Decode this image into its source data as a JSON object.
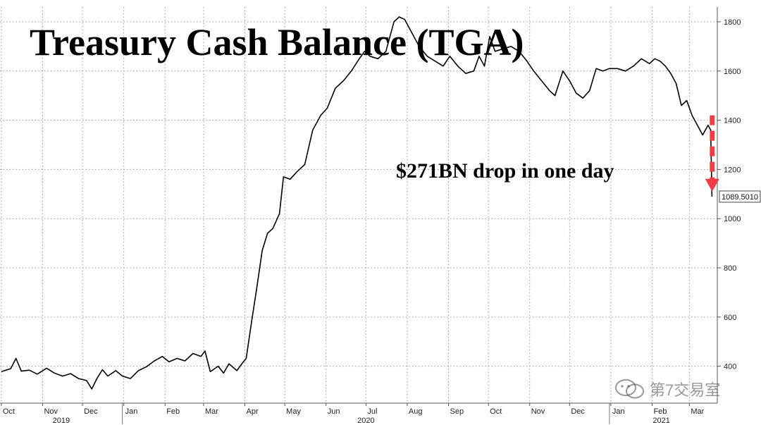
{
  "chart_data": {
    "type": "line",
    "title": "Treasury Cash Balance (TGA)",
    "annotation": "$271BN drop in one day",
    "last_value_label": "1089.5010",
    "series": [
      {
        "color": "#000000",
        "points": [
          [
            "2019-10-01",
            378
          ],
          [
            "2019-10-08",
            390
          ],
          [
            "2019-10-12",
            432
          ],
          [
            "2019-10-16",
            380
          ],
          [
            "2019-10-22",
            384
          ],
          [
            "2019-10-28",
            368
          ],
          [
            "2019-11-04",
            392
          ],
          [
            "2019-11-10",
            372
          ],
          [
            "2019-11-16",
            360
          ],
          [
            "2019-11-22",
            370
          ],
          [
            "2019-11-28",
            350
          ],
          [
            "2019-12-04",
            342
          ],
          [
            "2019-12-08",
            308
          ],
          [
            "2019-12-12",
            352
          ],
          [
            "2019-12-16",
            386
          ],
          [
            "2019-12-20",
            360
          ],
          [
            "2019-12-26",
            382
          ],
          [
            "2019-12-31",
            360
          ],
          [
            "2020-01-06",
            350
          ],
          [
            "2020-01-12",
            382
          ],
          [
            "2020-01-18",
            398
          ],
          [
            "2020-01-24",
            422
          ],
          [
            "2020-01-30",
            440
          ],
          [
            "2020-02-04",
            418
          ],
          [
            "2020-02-10",
            432
          ],
          [
            "2020-02-16",
            422
          ],
          [
            "2020-02-22",
            452
          ],
          [
            "2020-02-28",
            440
          ],
          [
            "2020-03-02",
            462
          ],
          [
            "2020-03-06",
            378
          ],
          [
            "2020-03-12",
            400
          ],
          [
            "2020-03-16",
            372
          ],
          [
            "2020-03-20",
            410
          ],
          [
            "2020-03-26",
            382
          ],
          [
            "2020-03-30",
            412
          ],
          [
            "2020-04-02",
            432
          ],
          [
            "2020-04-06",
            580
          ],
          [
            "2020-04-10",
            720
          ],
          [
            "2020-04-14",
            870
          ],
          [
            "2020-04-18",
            940
          ],
          [
            "2020-04-22",
            960
          ],
          [
            "2020-04-27",
            1020
          ],
          [
            "2020-04-30",
            1170
          ],
          [
            "2020-05-05",
            1160
          ],
          [
            "2020-05-10",
            1190
          ],
          [
            "2020-05-16",
            1220
          ],
          [
            "2020-05-22",
            1360
          ],
          [
            "2020-05-28",
            1420
          ],
          [
            "2020-06-02",
            1450
          ],
          [
            "2020-06-08",
            1530
          ],
          [
            "2020-06-14",
            1560
          ],
          [
            "2020-06-20",
            1600
          ],
          [
            "2020-06-26",
            1650
          ],
          [
            "2020-06-30",
            1680
          ],
          [
            "2020-07-04",
            1660
          ],
          [
            "2020-07-10",
            1650
          ],
          [
            "2020-07-16",
            1680
          ],
          [
            "2020-07-22",
            1800
          ],
          [
            "2020-07-26",
            1820
          ],
          [
            "2020-07-30",
            1810
          ],
          [
            "2020-08-04",
            1760
          ],
          [
            "2020-08-10",
            1700
          ],
          [
            "2020-08-16",
            1660
          ],
          [
            "2020-08-22",
            1640
          ],
          [
            "2020-08-28",
            1620
          ],
          [
            "2020-09-02",
            1660
          ],
          [
            "2020-09-08",
            1620
          ],
          [
            "2020-09-14",
            1590
          ],
          [
            "2020-09-20",
            1600
          ],
          [
            "2020-09-24",
            1660
          ],
          [
            "2020-09-28",
            1620
          ],
          [
            "2020-10-02",
            1740
          ],
          [
            "2020-10-06",
            1680
          ],
          [
            "2020-10-12",
            1690
          ],
          [
            "2020-10-18",
            1700
          ],
          [
            "2020-10-24",
            1680
          ],
          [
            "2020-10-30",
            1640
          ],
          [
            "2020-11-04",
            1600
          ],
          [
            "2020-11-10",
            1560
          ],
          [
            "2020-11-16",
            1520
          ],
          [
            "2020-11-20",
            1500
          ],
          [
            "2020-11-26",
            1600
          ],
          [
            "2020-12-01",
            1560
          ],
          [
            "2020-12-06",
            1510
          ],
          [
            "2020-12-11",
            1490
          ],
          [
            "2020-12-16",
            1520
          ],
          [
            "2020-12-21",
            1610
          ],
          [
            "2020-12-26",
            1600
          ],
          [
            "2020-12-31",
            1610
          ],
          [
            "2021-01-06",
            1610
          ],
          [
            "2021-01-12",
            1600
          ],
          [
            "2021-01-18",
            1620
          ],
          [
            "2021-01-24",
            1650
          ],
          [
            "2021-01-30",
            1630
          ],
          [
            "2021-02-03",
            1650
          ],
          [
            "2021-02-07",
            1640
          ],
          [
            "2021-02-11",
            1620
          ],
          [
            "2021-02-15",
            1590
          ],
          [
            "2021-02-19",
            1550
          ],
          [
            "2021-02-23",
            1460
          ],
          [
            "2021-02-27",
            1480
          ],
          [
            "2021-03-03",
            1420
          ],
          [
            "2021-03-07",
            1380
          ],
          [
            "2021-03-11",
            1340
          ],
          [
            "2021-03-15",
            1380
          ],
          [
            "2021-03-17",
            1360
          ],
          [
            "2021-03-18",
            1089.501
          ]
        ]
      }
    ],
    "x_axis": {
      "range": [
        "2019-09-30",
        "2021-03-22"
      ],
      "ticks": [
        {
          "date": "2019-10-01",
          "label": "Oct"
        },
        {
          "date": "2019-11-01",
          "label": "Nov"
        },
        {
          "date": "2019-12-01",
          "label": "Dec"
        },
        {
          "date": "2020-01-01",
          "label": "Jan"
        },
        {
          "date": "2020-02-01",
          "label": "Feb"
        },
        {
          "date": "2020-03-01",
          "label": "Mar"
        },
        {
          "date": "2020-04-01",
          "label": "Apr"
        },
        {
          "date": "2020-05-01",
          "label": "May"
        },
        {
          "date": "2020-06-01",
          "label": "Jun"
        },
        {
          "date": "2020-07-01",
          "label": "Jul"
        },
        {
          "date": "2020-08-01",
          "label": "Aug"
        },
        {
          "date": "2020-09-01",
          "label": "Sep"
        },
        {
          "date": "2020-10-01",
          "label": "Oct"
        },
        {
          "date": "2020-11-01",
          "label": "Nov"
        },
        {
          "date": "2020-12-01",
          "label": "Dec"
        },
        {
          "date": "2021-01-01",
          "label": "Jan"
        },
        {
          "date": "2021-02-01",
          "label": "Feb"
        },
        {
          "date": "2021-03-01",
          "label": "Mar"
        }
      ],
      "years": [
        {
          "label": "2019",
          "center": "2019-11-15",
          "divider": "2020-01-01"
        },
        {
          "label": "2020",
          "center": "2020-07-01",
          "divider": "2021-01-01"
        },
        {
          "label": "2021",
          "center": "2021-02-08"
        }
      ]
    },
    "y_axis": {
      "range": [
        250,
        1860
      ],
      "ticks": [
        400,
        600,
        800,
        1000,
        1200,
        1400,
        1600,
        1800
      ],
      "position": "right"
    },
    "grid": true,
    "arrow_color": "#f03c46"
  },
  "watermark": {
    "text": "第7交易室"
  }
}
